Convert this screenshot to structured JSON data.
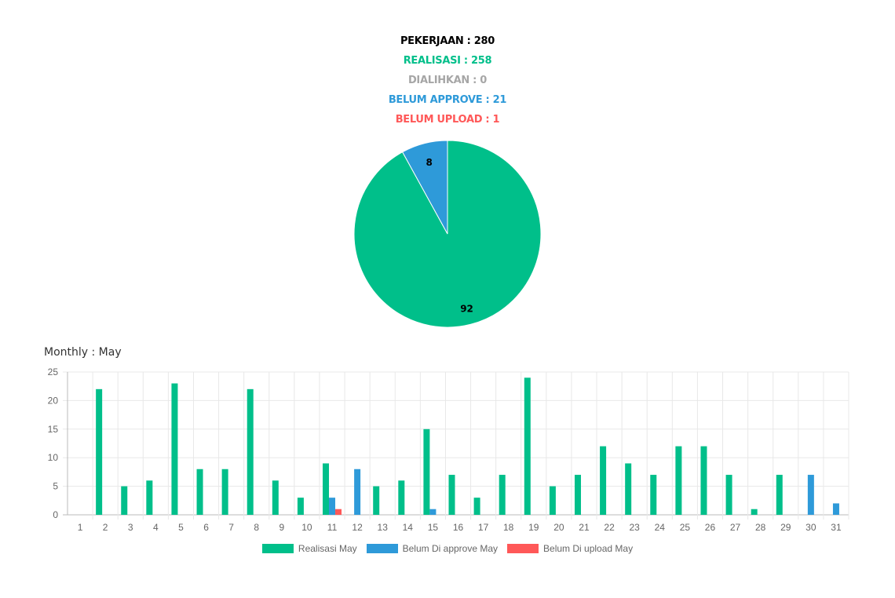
{
  "summary": {
    "pekerjaan": "PEKERJAAN : 280",
    "realisasi": "REALISASI : 258",
    "dialihkan": "DIALIHKAN : 0",
    "belum_approve": "BELUM APPROVE : 21",
    "belum_upload": "BELUM UPLOAD : 1"
  },
  "colors": {
    "realisasi": "#00bf8a",
    "dialihkan": "#a6a6a6",
    "approve": "#2e9ad9",
    "upload": "#ff5858",
    "pekerjaan": "#000000"
  },
  "monthly_title": "Monthly : May",
  "chart_data": [
    {
      "type": "pie",
      "slices": [
        {
          "label": "92",
          "value": 92,
          "color": "#00bf8a"
        },
        {
          "label": "8",
          "value": 8,
          "color": "#2e9ad9"
        }
      ]
    },
    {
      "type": "bar",
      "categories": [
        "1",
        "2",
        "3",
        "4",
        "5",
        "6",
        "7",
        "8",
        "9",
        "10",
        "11",
        "12",
        "13",
        "14",
        "15",
        "16",
        "17",
        "18",
        "19",
        "20",
        "21",
        "22",
        "23",
        "24",
        "25",
        "26",
        "27",
        "28",
        "29",
        "30",
        "31"
      ],
      "ylim": [
        0,
        25
      ],
      "yticks": [
        0,
        5,
        10,
        15,
        20,
        25
      ],
      "grid": true,
      "legend_position": "bottom",
      "series": [
        {
          "name": "Realisasi May",
          "color": "#00bf8a",
          "values": [
            0,
            22,
            5,
            6,
            23,
            8,
            8,
            22,
            6,
            3,
            9,
            0,
            5,
            6,
            15,
            7,
            3,
            7,
            24,
            5,
            7,
            12,
            9,
            7,
            12,
            12,
            7,
            1,
            7,
            0,
            0
          ]
        },
        {
          "name": "Belum Di approve May",
          "color": "#2e9ad9",
          "values": [
            0,
            0,
            0,
            0,
            0,
            0,
            0,
            0,
            0,
            0,
            3,
            8,
            0,
            0,
            1,
            0,
            0,
            0,
            0,
            0,
            0,
            0,
            0,
            0,
            0,
            0,
            0,
            0,
            0,
            7,
            2
          ]
        },
        {
          "name": "Belum Di upload May",
          "color": "#ff5858",
          "values": [
            0,
            0,
            0,
            0,
            0,
            0,
            0,
            0,
            0,
            0,
            1,
            0,
            0,
            0,
            0,
            0,
            0,
            0,
            0,
            0,
            0,
            0,
            0,
            0,
            0,
            0,
            0,
            0,
            0,
            0,
            0
          ]
        }
      ]
    }
  ]
}
